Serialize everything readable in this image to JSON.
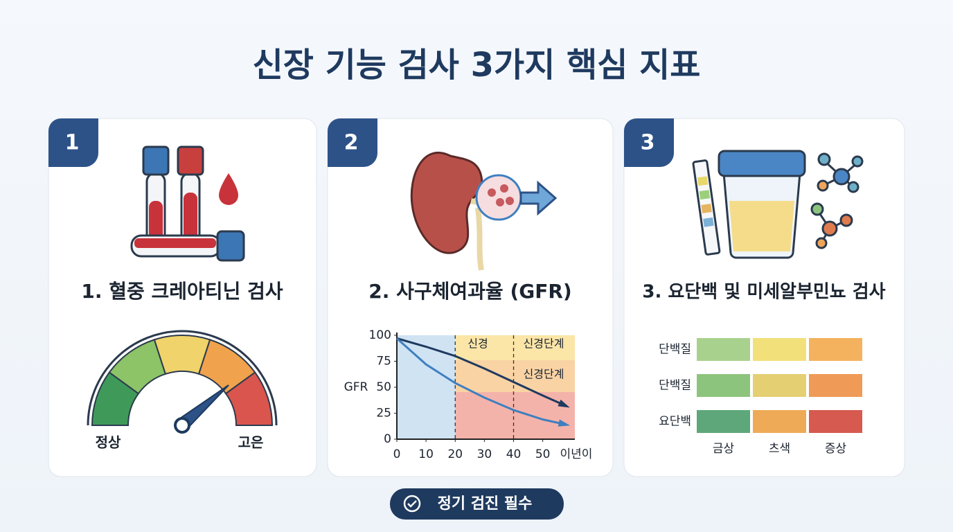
{
  "title": "신장 기능 검사 3가지 핵심 지표",
  "cards": [
    {
      "number": "1",
      "heading": "1. 혈중 크레아티닌 검사",
      "gauge": {
        "left_label": "정상",
        "right_label": "고은"
      }
    },
    {
      "number": "2",
      "heading": "2. 사구체여과율 (GFR)",
      "chart": {
        "type": "line",
        "y_label": "GFR",
        "x_label": "이년이",
        "x": [
          0,
          10,
          20,
          30,
          40,
          50,
          58
        ],
        "series": [
          {
            "color": "#1f3a5f",
            "values": [
              97,
              89,
              80,
              68,
              55,
              42,
              32
            ]
          },
          {
            "color": "#3f7fc0",
            "values": [
              97,
              72,
              54,
              40,
              28,
              19,
              14
            ]
          }
        ],
        "xlim": [
          0,
          61
        ],
        "ylim": [
          0,
          100
        ],
        "xticks": [
          0,
          10,
          20,
          30,
          40,
          50
        ],
        "yticks": [
          0,
          25,
          50,
          75,
          100
        ],
        "dividers": [
          20,
          40
        ],
        "zone_labels": [
          "신경",
          "신경단계",
          "신경단계"
        ]
      }
    },
    {
      "number": "3",
      "heading": "3. 요단백 및 미세알부민뇨 검사",
      "grid": {
        "rows": [
          "단백질",
          "단백질",
          "요단백"
        ],
        "columns": [
          "금상",
          "츠색",
          "증상"
        ],
        "cell_colors": [
          [
            "#a9d18e",
            "#f2e07a",
            "#f4b25e"
          ],
          [
            "#8dc47d",
            "#e5cf73",
            "#ef9a56"
          ],
          [
            "#5ea77a",
            "#eeaa56",
            "#d65a50"
          ]
        ]
      }
    }
  ],
  "footer": "정기 검진 필수"
}
